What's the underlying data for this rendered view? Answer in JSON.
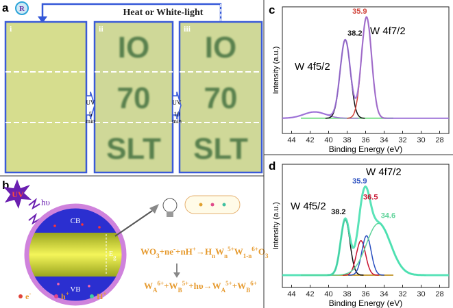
{
  "panel_a": {
    "label": "a",
    "icon": "R",
    "caption": "Heat or White-light",
    "columns": [
      "i",
      "ii",
      "iii"
    ],
    "writings": [
      "IO",
      "70",
      "SLT"
    ],
    "arrows": [
      {
        "text": "UV",
        "time": "5",
        "unit": "min"
      },
      {
        "text": "UV",
        "time": "10",
        "unit": "min"
      }
    ]
  },
  "panel_b": {
    "label": "b",
    "uv": "UV",
    "hv": "hυ",
    "cb": "CB",
    "vb": "VB",
    "gap": "E",
    "gap_sub": "g",
    "equation_1": [
      "WO",
      "3",
      "+ne",
      "-",
      "+nH",
      "+",
      "→H",
      "n",
      "W",
      "n",
      "5+",
      "W",
      "1-n",
      "6+",
      "O",
      "3"
    ],
    "equation_2": [
      "W",
      "A",
      "6+",
      "+W",
      "B",
      "5+",
      "+hυ→W",
      "A",
      "5+",
      "+W",
      "B",
      "6+"
    ],
    "legend": [
      {
        "name": "e",
        "charge": "-"
      },
      {
        "name": "h",
        "charge": "+"
      },
      {
        "name": "H",
        "charge": "+"
      }
    ]
  },
  "panel_c": {
    "label": "c",
    "type": "line",
    "xlabel": "Binding Energy (eV)",
    "ylabel": "Intensity (a.u.)",
    "xlim": [
      45,
      27
    ],
    "xticks": [
      44,
      42,
      40,
      38,
      36,
      34,
      32,
      30,
      28
    ],
    "ylim": [
      0,
      1
    ],
    "baseline": 0.12,
    "envelope_color": "#9b6fd6",
    "baseline_color": "#7be08a",
    "annotations": [
      "W 4f5/2",
      "W 4f7/2"
    ],
    "peaks": [
      {
        "center": 41.5,
        "height": 0.05,
        "width": 1.2,
        "color": "#9b6fd6"
      },
      {
        "center": 38.2,
        "height": 0.62,
        "width": 0.55,
        "color": "#111111"
      },
      {
        "center": 35.9,
        "height": 0.8,
        "width": 0.55,
        "color": "#d0433a"
      }
    ]
  },
  "panel_d": {
    "label": "d",
    "type": "line",
    "xlabel": "Binding Energy (eV)",
    "ylabel": "Intensity (a.u.)",
    "xlim": [
      45,
      27
    ],
    "xticks": [
      44,
      42,
      40,
      38,
      36,
      34,
      32,
      30,
      28
    ],
    "ylim": [
      0,
      1
    ],
    "baseline": 0.1,
    "envelope_color": "#48e0b0",
    "baseline_color": "#c8a040",
    "annotations": [
      "W 4f5/2",
      "W 4f7/2"
    ],
    "peaks": [
      {
        "center": 38.2,
        "height": 0.45,
        "width": 0.5,
        "color": "#111111"
      },
      {
        "center": 36.5,
        "height": 0.28,
        "width": 0.5,
        "color": "#c8102e"
      },
      {
        "center": 35.9,
        "height": 0.32,
        "width": 0.5,
        "color": "#2a4fc0"
      },
      {
        "center": 34.6,
        "height": 0.42,
        "width": 1.3,
        "color": "#5fd39a"
      }
    ]
  }
}
